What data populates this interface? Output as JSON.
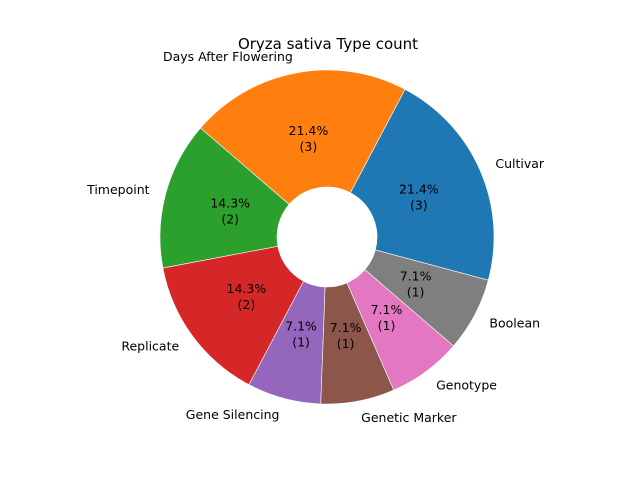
{
  "chart_data": {
    "type": "pie",
    "style": "donut",
    "title": "Oryza sativa Type count",
    "total": 14,
    "slices": [
      {
        "label": "Cultivar",
        "value": 3,
        "pct": "21.4%",
        "count": "(3)",
        "color": "#1f77b4"
      },
      {
        "label": "Days After Flowering",
        "value": 3,
        "pct": "21.4%",
        "count": "(3)",
        "color": "#ff7f0e"
      },
      {
        "label": "Timepoint",
        "value": 2,
        "pct": "14.3%",
        "count": "(2)",
        "color": "#2ca02c"
      },
      {
        "label": "Replicate",
        "value": 2,
        "pct": "14.3%",
        "count": "(2)",
        "color": "#d62728"
      },
      {
        "label": "Gene Silencing",
        "value": 1,
        "pct": "7.1%",
        "count": "(1)",
        "color": "#9467bd"
      },
      {
        "label": "Genetic Marker",
        "value": 1,
        "pct": "7.1%",
        "count": "(1)",
        "color": "#8c564b"
      },
      {
        "label": "Genotype",
        "value": 1,
        "pct": "7.1%",
        "count": "(1)",
        "color": "#e377c2"
      },
      {
        "label": "Boolean",
        "value": 1,
        "pct": "7.1%",
        "count": "(1)",
        "color": "#7f7f7f"
      }
    ]
  }
}
